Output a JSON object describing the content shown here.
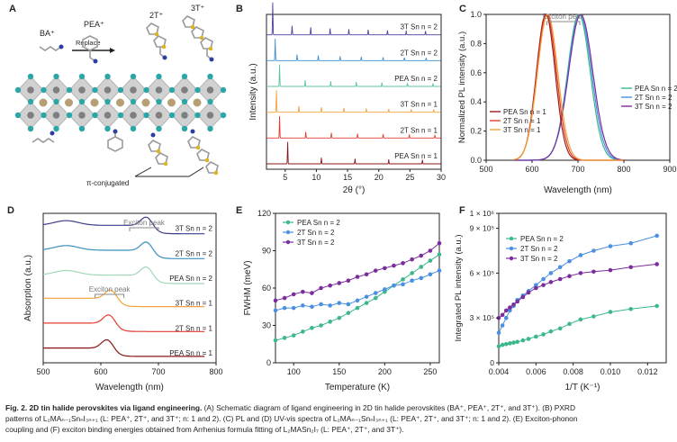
{
  "panels": {
    "A": {
      "letter": "A",
      "cations": [
        "BA⁺",
        "PEA⁺",
        "2T⁺",
        "3T⁺"
      ],
      "replace_label": "Replace",
      "pi_label": "π-conjugated"
    },
    "B": {
      "letter": "B"
    },
    "C": {
      "letter": "C"
    },
    "D": {
      "letter": "D"
    },
    "E": {
      "letter": "E"
    },
    "F": {
      "letter": "F"
    }
  },
  "colors": {
    "PEA_n2": "#3cb88a",
    "2T_n2": "#4a90e2",
    "3T_n2": "#7b2d9e",
    "PEA_n1": "#9b1b1b",
    "2T_n1": "#e23b2e",
    "3T_n1": "#f2a33a",
    "xrd_3T_n2": "#4b3f9e",
    "xrd_2T_n2": "#3b8fd1",
    "xrd_PEA_n2": "#5cc49a",
    "xrd_3T_n1": "#f2a33a",
    "xrd_2T_n1": "#e23b2e",
    "xrd_PEA_n1": "#8b1414"
  },
  "chart_data": [
    {
      "panel": "B",
      "type": "line",
      "xlabel": "2θ (°)",
      "ylabel": "Intensity (a.u.)",
      "xlim": [
        2,
        30
      ],
      "xticks": [
        5,
        10,
        15,
        20,
        25,
        30
      ],
      "series": [
        {
          "name": "3T Sn n = 2",
          "peaks": [
            3.0,
            6.1,
            9.1,
            12.2,
            15.2,
            18.3,
            21.4,
            24.4,
            27.5
          ]
        },
        {
          "name": "2T Sn n = 2",
          "peaks": [
            3.4,
            6.9,
            10.3,
            13.8,
            17.2,
            20.7,
            24.1,
            27.6
          ]
        },
        {
          "name": "PEA Sn n = 2",
          "peaks": [
            4.1,
            8.2,
            12.3,
            16.4,
            20.5,
            24.6,
            28.7
          ]
        },
        {
          "name": "3T Sn n = 1",
          "peaks": [
            3.6,
            7.2,
            10.8,
            14.4,
            18.0,
            21.6,
            25.2,
            28.8
          ]
        },
        {
          "name": "2T Sn n = 1",
          "peaks": [
            4.1,
            8.3,
            12.4,
            16.6,
            20.7,
            24.9,
            29.0
          ]
        },
        {
          "name": "PEA Sn n = 1",
          "peaks": [
            5.4,
            10.8,
            16.2,
            21.6,
            27.0
          ]
        }
      ]
    },
    {
      "panel": "C",
      "type": "line",
      "xlabel": "Wavelength (nm)",
      "ylabel": "Normalized PL intensity (a.u.)",
      "xlim": [
        500,
        900
      ],
      "ylim": [
        0,
        1.0
      ],
      "xticks": [
        500,
        600,
        700,
        800,
        900
      ],
      "yticks": [
        0.0,
        0.2,
        0.4,
        0.6,
        0.8,
        1.0
      ],
      "annotation": "Exciton peak",
      "series": [
        {
          "name": "PEA Sn n = 2",
          "peak_nm": 702,
          "fwhm_nm": 58
        },
        {
          "name": "2T Sn n = 2",
          "peak_nm": 704,
          "fwhm_nm": 60
        },
        {
          "name": "3T Sn n = 2",
          "peak_nm": 706,
          "fwhm_nm": 62
        },
        {
          "name": "PEA Sn n = 1",
          "peak_nm": 630,
          "fwhm_nm": 48
        },
        {
          "name": "2T Sn n = 1",
          "peak_nm": 632,
          "fwhm_nm": 50
        },
        {
          "name": "3T Sn n = 1",
          "peak_nm": 634,
          "fwhm_nm": 52
        }
      ]
    },
    {
      "panel": "D",
      "type": "line",
      "xlabel": "Wavelength (nm)",
      "ylabel": "Absorption (a.u.)",
      "xlim": [
        500,
        800
      ],
      "xticks": [
        500,
        600,
        700,
        800
      ],
      "annotations": [
        "Exciton peak",
        "Exciton peak"
      ],
      "series": [
        {
          "name": "3T Sn n = 2",
          "exciton_nm": 680
        },
        {
          "name": "2T Sn n = 2",
          "exciton_nm": 680
        },
        {
          "name": "PEA Sn n = 2",
          "exciton_nm": 680
        },
        {
          "name": "3T Sn n = 1",
          "exciton_nm": 618
        },
        {
          "name": "2T Sn n = 1",
          "exciton_nm": 615
        },
        {
          "name": "PEA Sn n = 1",
          "exciton_nm": 612
        }
      ]
    },
    {
      "panel": "E",
      "type": "scatter",
      "xlabel": "Temperature (K)",
      "ylabel": "FWHM (meV)",
      "xlim": [
        80,
        260
      ],
      "ylim": [
        0,
        120
      ],
      "xticks": [
        100,
        150,
        200,
        250
      ],
      "yticks": [
        0,
        30,
        60,
        90,
        120
      ],
      "series": [
        {
          "name": "PEA Sn n = 2",
          "x": [
            80,
            90,
            100,
            110,
            120,
            130,
            140,
            150,
            160,
            170,
            180,
            190,
            200,
            210,
            220,
            230,
            240,
            250,
            260
          ],
          "y": [
            18,
            20,
            22,
            25,
            28,
            30,
            33,
            36,
            40,
            44,
            48,
            52,
            57,
            62,
            67,
            72,
            77,
            82,
            87
          ]
        },
        {
          "name": "2T Sn n = 2",
          "x": [
            80,
            90,
            100,
            110,
            120,
            130,
            140,
            150,
            160,
            170,
            180,
            190,
            200,
            210,
            220,
            230,
            240,
            250,
            260
          ],
          "y": [
            42,
            44,
            44,
            46,
            45,
            47,
            46,
            48,
            47,
            50,
            53,
            56,
            59,
            62,
            63,
            66,
            68,
            71,
            74
          ]
        },
        {
          "name": "3T Sn n = 2",
          "x": [
            80,
            90,
            100,
            110,
            120,
            130,
            140,
            150,
            160,
            170,
            180,
            190,
            200,
            210,
            220,
            230,
            240,
            250,
            260
          ],
          "y": [
            50,
            52,
            55,
            57,
            56,
            60,
            62,
            64,
            66,
            69,
            71,
            74,
            76,
            78,
            80,
            83,
            86,
            90,
            96
          ]
        }
      ]
    },
    {
      "panel": "F",
      "type": "scatter",
      "xlabel": "1/T (K⁻¹)",
      "ylabel": "Integrated PL intensity (a.u.)",
      "xlim": [
        0.004,
        0.013
      ],
      "ylim": [
        0,
        1000000
      ],
      "xticks": [
        0.004,
        0.006,
        0.008,
        0.01,
        0.012
      ],
      "yticks_labels": [
        "0",
        "3 × 10⁵",
        "6 × 10⁵",
        "9 × 10⁵",
        "1 × 10⁶"
      ],
      "series": [
        {
          "name": "PEA Sn n = 2",
          "x": [
            0.004,
            0.0042,
            0.0044,
            0.0046,
            0.0048,
            0.005,
            0.0053,
            0.0056,
            0.006,
            0.0064,
            0.0068,
            0.0073,
            0.0078,
            0.0084,
            0.0091,
            0.01,
            0.0111,
            0.0125
          ],
          "y": [
            110000,
            120000,
            125000,
            130000,
            135000,
            140000,
            150000,
            160000,
            175000,
            190000,
            210000,
            230000,
            260000,
            290000,
            310000,
            340000,
            360000,
            380000
          ]
        },
        {
          "name": "2T Sn n = 2",
          "x": [
            0.004,
            0.0042,
            0.0044,
            0.0046,
            0.0048,
            0.005,
            0.0053,
            0.0056,
            0.006,
            0.0064,
            0.0068,
            0.0073,
            0.0078,
            0.0084,
            0.0091,
            0.01,
            0.0111,
            0.0125
          ],
          "y": [
            200000,
            250000,
            300000,
            350000,
            380000,
            420000,
            450000,
            480000,
            520000,
            560000,
            600000,
            640000,
            680000,
            720000,
            750000,
            780000,
            800000,
            850000
          ]
        },
        {
          "name": "3T Sn n = 2",
          "x": [
            0.004,
            0.0042,
            0.0044,
            0.0046,
            0.0048,
            0.005,
            0.0053,
            0.0056,
            0.006,
            0.0064,
            0.0068,
            0.0073,
            0.0078,
            0.0084,
            0.0091,
            0.01,
            0.0111,
            0.0125
          ],
          "y": [
            300000,
            320000,
            350000,
            370000,
            390000,
            410000,
            440000,
            470000,
            500000,
            520000,
            540000,
            560000,
            580000,
            600000,
            610000,
            620000,
            640000,
            660000
          ]
        }
      ]
    }
  ],
  "caption": {
    "fig_label": "Fig. 2. 2D tin halide perovskites via ligand engineering.",
    "line1_rest": " (A) Schematic diagram of ligand engineering in 2D tin halide perovskites (BA⁺, PEA⁺, 2T⁺, and 3T⁺). (B) PXRD",
    "line2": "patterns of L₂MAₙ₋₁SnₙI₃ₙ₊₁ (L: PEA⁺, 2T⁺, and 3T⁺; n: 1 and 2). (C) PL and (D) UV-vis spectra of L₂MAₙ₋₁SnₙI₃ₙ₊₁ (L: PEA⁺, 2T⁺, and 3T⁺; n: 1 and 2). (E) Exciton-phonon",
    "line3": "coupling and (F) exciton binding energies obtained from Arrhenius formula fitting of L₂MASn₂I₇ (L: PEA⁺, 2T⁺, and 3T⁺)."
  }
}
